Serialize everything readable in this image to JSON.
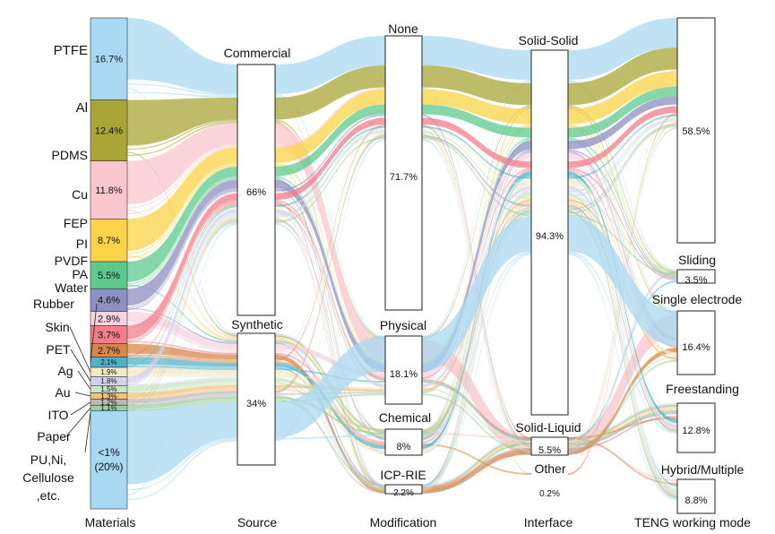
{
  "chart_data": {
    "type": "sankey",
    "title": "",
    "axes": [
      {
        "name": "Materials",
        "nodes": [
          {
            "name": "PTFE",
            "value": 16.7,
            "color": "#a9d8f2"
          },
          {
            "name": "Al",
            "value": 12.4,
            "color": "#a9a637"
          },
          {
            "name": "PDMS",
            "value": 11.8,
            "color": "#f9c6cc"
          },
          {
            "name": "Cu",
            "value": 8.7,
            "color": "#fbd34a"
          },
          {
            "name": "FEP",
            "value": 5.5,
            "color": "#5ec98c"
          },
          {
            "name": "PI",
            "value": 4.6,
            "color": "#8f8fc3"
          },
          {
            "name": "PVDF",
            "value": 2.9,
            "color": "#f6d3e1"
          },
          {
            "name": "PA",
            "value": 3.7,
            "color": "#f27d8b"
          },
          {
            "name": "Water",
            "value": 2.7,
            "color": "#d8874a"
          },
          {
            "name": "Rubber",
            "value": 2.1,
            "color": "#4fb3c9"
          },
          {
            "name": "Skin",
            "value": 1.9,
            "color": "#f4e7c4"
          },
          {
            "name": "PET",
            "value": 1.8,
            "color": "#d2d2ee"
          },
          {
            "name": "Ag",
            "value": 1.5,
            "color": "#c7e6c1"
          },
          {
            "name": "Au",
            "value": 1.3,
            "color": "#f3c27a"
          },
          {
            "name": "ITO",
            "value": 1.2,
            "color": "#b9b9b9"
          },
          {
            "name": "Paper",
            "value": 1.1,
            "color": "#9bcf9b"
          },
          {
            "name": "PU,Ni,\nCellulose\n,etc.",
            "value": 20,
            "color": "#a9d8f2"
          }
        ]
      },
      {
        "name": "Source",
        "nodes": [
          {
            "name": "Commercial",
            "value": 66
          },
          {
            "name": "Synthetic",
            "value": 34
          }
        ]
      },
      {
        "name": "Modification",
        "nodes": [
          {
            "name": "None",
            "value": 71.7
          },
          {
            "name": "Physical",
            "value": 18.1
          },
          {
            "name": "Chemical",
            "value": 8
          },
          {
            "name": "ICP-RIE",
            "value": 2.2
          }
        ]
      },
      {
        "name": "Interface",
        "nodes": [
          {
            "name": "Solid-Solid",
            "value": 94.3
          },
          {
            "name": "Solid-Liquid",
            "value": 5.5
          },
          {
            "name": "Other",
            "value": 0.2
          }
        ]
      },
      {
        "name": "TENG working mode",
        "nodes": [
          {
            "name": "",
            "value": 58.5
          },
          {
            "name": "Sliding",
            "value": 3.5
          },
          {
            "name": "Single electrode",
            "value": 16.4
          },
          {
            "name": "Freestanding",
            "value": 12.8
          },
          {
            "name": "Hybrid/Multiple",
            "value": 8.8
          }
        ]
      }
    ],
    "material_bar_labels": [
      "16.7%",
      "12.4%",
      "11.8%",
      "8.7%",
      "5.5%",
      "4.6%",
      "2.9%",
      "3.7%",
      "2.7%",
      "2.1%",
      "1.9%",
      "1.8%",
      "1.5%",
      "1.3%",
      "1.2%",
      "1.1%",
      "<1%\n(20%)"
    ]
  }
}
